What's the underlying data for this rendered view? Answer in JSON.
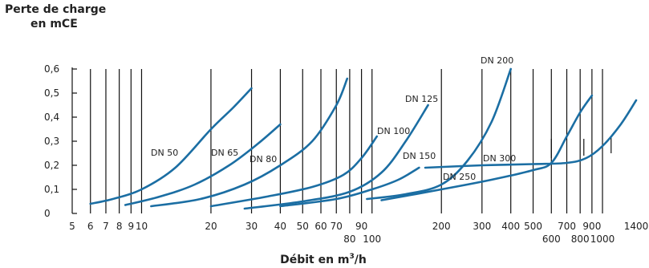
{
  "chart_data": {
    "type": "line",
    "title": "",
    "ylabel_line1": "Perte de charge",
    "ylabel_line2": "en mCE",
    "xlabel_prefix": "Débit en m",
    "xlabel_sup": "3",
    "xlabel_suffix": "/h",
    "x_scale": "log",
    "xlim": [
      5,
      1400
    ],
    "ylim": [
      0,
      0.6
    ],
    "grid": "vertical lines at x ticks; horizontal ticks on left axis",
    "y_ticks": [
      {
        "value": 0,
        "label": "0"
      },
      {
        "value": 0.1,
        "label": "0,1"
      },
      {
        "value": 0.2,
        "label": "0,2"
      },
      {
        "value": 0.3,
        "label": "0,3"
      },
      {
        "value": 0.4,
        "label": "0,4"
      },
      {
        "value": 0.5,
        "label": "0,5"
      },
      {
        "value": 0.6,
        "label": "0,6"
      }
    ],
    "x_ticks_row1": [
      {
        "value": 5,
        "label": "5"
      },
      {
        "value": 6,
        "label": "6"
      },
      {
        "value": 7,
        "label": "7"
      },
      {
        "value": 8,
        "label": "8"
      },
      {
        "value": 9,
        "label": "9"
      },
      {
        "value": 10,
        "label": "10"
      },
      {
        "value": 20,
        "label": "20"
      },
      {
        "value": 30,
        "label": "30"
      },
      {
        "value": 40,
        "label": "40"
      },
      {
        "value": 50,
        "label": "50"
      },
      {
        "value": 60,
        "label": "60"
      },
      {
        "value": 70,
        "label": "70"
      },
      {
        "value": 90,
        "label": "90"
      },
      {
        "value": 200,
        "label": "200"
      },
      {
        "value": 300,
        "label": "300"
      },
      {
        "value": 400,
        "label": "400"
      },
      {
        "value": 500,
        "label": "500"
      },
      {
        "value": 700,
        "label": "700"
      },
      {
        "value": 900,
        "label": "900"
      },
      {
        "value": 1400,
        "label": "1400"
      }
    ],
    "x_ticks_row2": [
      {
        "value": 80,
        "label": "80"
      },
      {
        "value": 100,
        "label": "100"
      },
      {
        "value": 600,
        "label": "600"
      },
      {
        "value": 800,
        "label": "800"
      },
      {
        "value": 1000,
        "label": "1000"
      }
    ],
    "gridlines_x": [
      6,
      7,
      8,
      9,
      10,
      20,
      30,
      40,
      50,
      60,
      70,
      80,
      90,
      100,
      200,
      300,
      400,
      500,
      600,
      700,
      800,
      900,
      1000
    ],
    "line_color": "#1b6ea3",
    "series": [
      {
        "name": "DN 50",
        "x": [
          6,
          7.5,
          10,
          14,
          20,
          25,
          30
        ],
        "y": [
          0.04,
          0.06,
          0.1,
          0.19,
          0.35,
          0.44,
          0.52
        ]
      },
      {
        "name": "DN 65",
        "x": [
          8.5,
          12,
          17,
          24,
          32,
          40
        ],
        "y": [
          0.035,
          0.07,
          0.12,
          0.2,
          0.29,
          0.37
        ]
      },
      {
        "name": "DN 80",
        "x": [
          11,
          18,
          28,
          40,
          55,
          70,
          78
        ],
        "y": [
          0.03,
          0.06,
          0.12,
          0.2,
          0.3,
          0.45,
          0.56
        ]
      },
      {
        "name": "DN 100",
        "x": [
          20,
          35,
          55,
          75,
          90,
          105
        ],
        "y": [
          0.03,
          0.07,
          0.11,
          0.16,
          0.23,
          0.32
        ]
      },
      {
        "name": "DN 125",
        "x": [
          28,
          50,
          80,
          110,
          140,
          175
        ],
        "y": [
          0.02,
          0.05,
          0.09,
          0.17,
          0.3,
          0.45
        ]
      },
      {
        "name": "DN 150",
        "x": [
          40,
          70,
          100,
          130,
          160
        ],
        "y": [
          0.03,
          0.06,
          0.1,
          0.14,
          0.19
        ]
      },
      {
        "name": "DN 200",
        "x": [
          95,
          140,
          200,
          260,
          330,
          400
        ],
        "y": [
          0.06,
          0.08,
          0.12,
          0.22,
          0.38,
          0.6
        ]
      },
      {
        "name": "DN 250",
        "x": [
          110,
          200,
          330,
          500,
          600,
          700,
          800,
          900
        ],
        "y": [
          0.055,
          0.1,
          0.14,
          0.18,
          0.21,
          0.32,
          0.42,
          0.49
        ]
      },
      {
        "name": "DN 300",
        "x": [
          170,
          300,
          500,
          700,
          850,
          1000,
          1200,
          1400
        ],
        "y": [
          0.19,
          0.2,
          0.205,
          0.21,
          0.23,
          0.28,
          0.37,
          0.47
        ]
      }
    ],
    "vertical_markers": [
      {
        "x": 600,
        "y0": 0.23,
        "y1": 0.31
      },
      {
        "x": 830,
        "y0": 0.24,
        "y1": 0.31
      },
      {
        "x": 1090,
        "y0": 0.25,
        "y1": 0.32
      }
    ]
  }
}
